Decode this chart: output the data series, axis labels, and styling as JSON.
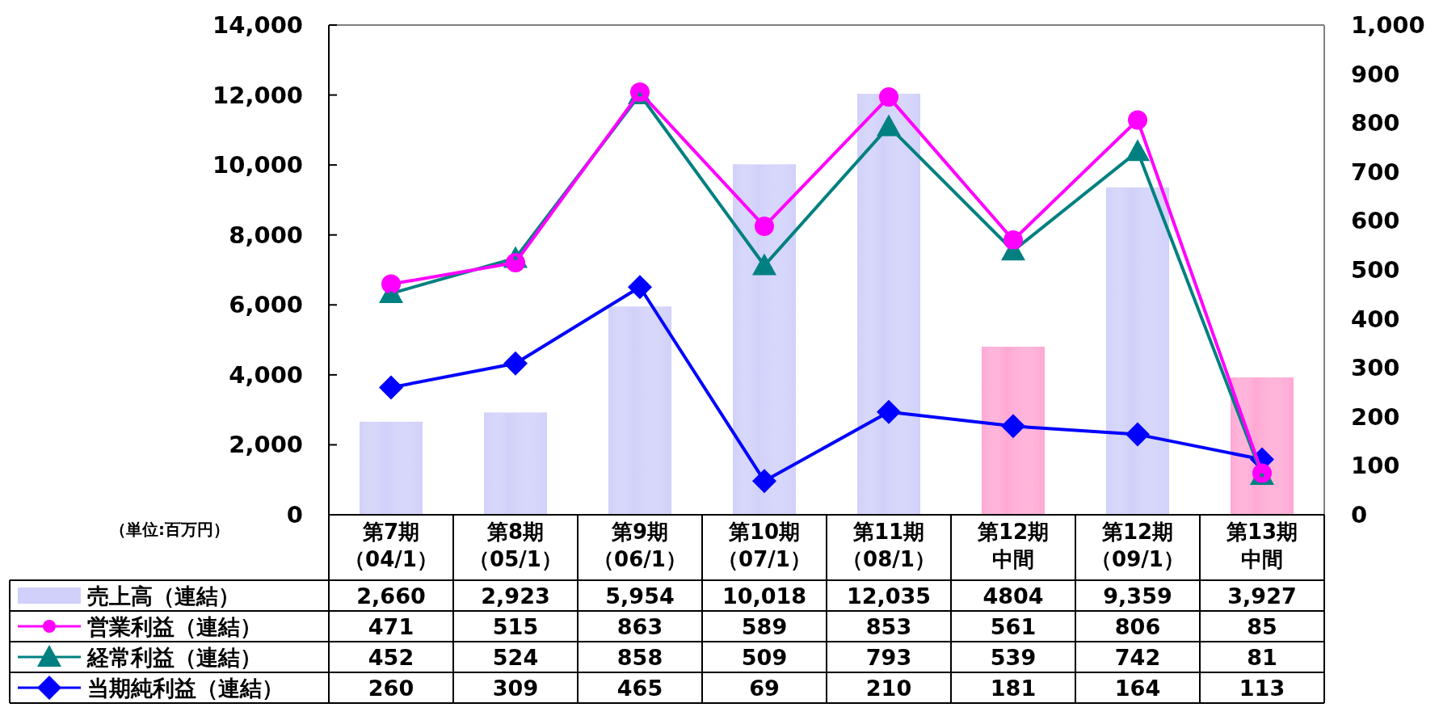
{
  "chart_data": {
    "type": "bar",
    "categories": [
      "第7期（04/1）",
      "第8期（05/1）",
      "第9期（06/1）",
      "第10期（07/1）",
      "第11期（08/1）",
      "第12期中間",
      "第12期（09/1）",
      "第13期中間"
    ],
    "series": [
      {
        "name": "売上高（連結）",
        "colors": [
          "#d0d0fa",
          "#d0d0fa",
          "#d0d0fa",
          "#d0d0fa",
          "#d0d0fa",
          "#ffa8d4",
          "#d0d0fa",
          "#ffa8d4"
        ],
        "values": [
          2660,
          2923,
          5954,
          10018,
          12035,
          4804,
          9359,
          3927
        ],
        "value_labels": [
          "2,660",
          "2,923",
          "5,954",
          "10,018",
          "12,035",
          "4804",
          "9,359",
          "3,927"
        ]
      },
      {
        "name": "営業利益（連結）",
        "type": "line",
        "axis": "y2",
        "color": "#ff00ff",
        "marker": "circle",
        "values": [
          471,
          515,
          863,
          589,
          853,
          561,
          806,
          85
        ],
        "value_labels": [
          "471",
          "515",
          "863",
          "589",
          "853",
          "561",
          "806",
          "85"
        ]
      },
      {
        "name": "経常利益（連結）",
        "type": "line",
        "axis": "y2",
        "color": "#008080",
        "marker": "triangle",
        "values": [
          452,
          524,
          858,
          509,
          793,
          539,
          742,
          81
        ],
        "value_labels": [
          "452",
          "524",
          "858",
          "509",
          "793",
          "539",
          "742",
          "81"
        ]
      },
      {
        "name": "当期純利益（連結）",
        "type": "line",
        "axis": "y2",
        "color": "#0000ff",
        "marker": "diamond",
        "values": [
          260,
          309,
          465,
          69,
          210,
          181,
          164,
          113
        ],
        "value_labels": [
          "260",
          "309",
          "465",
          "69",
          "210",
          "181",
          "164",
          "113"
        ]
      }
    ],
    "ylim": [
      0,
      14000
    ],
    "yticks": [
      0,
      {
        "value": 2000,
        "label": "2,000"
      },
      {
        "value": 4000,
        "label": "4,000"
      },
      {
        "value": 6000,
        "label": "6,000"
      },
      {
        "value": 8000,
        "label": "8,000"
      },
      {
        "value": 10000,
        "label": "10,000"
      },
      {
        "value": 12000,
        "label": "12,000"
      },
      {
        "value": 14000,
        "label": "14,000"
      }
    ],
    "y2lim": [
      0,
      1000
    ],
    "y2ticks": [
      0,
      100,
      200,
      300,
      400,
      500,
      600,
      700,
      800,
      900,
      {
        "value": 1000,
        "label": "1,000"
      }
    ],
    "annotations": [
      "（単位:百万円）"
    ],
    "legend": "bottom",
    "line_style": "solid",
    "grid": false
  }
}
